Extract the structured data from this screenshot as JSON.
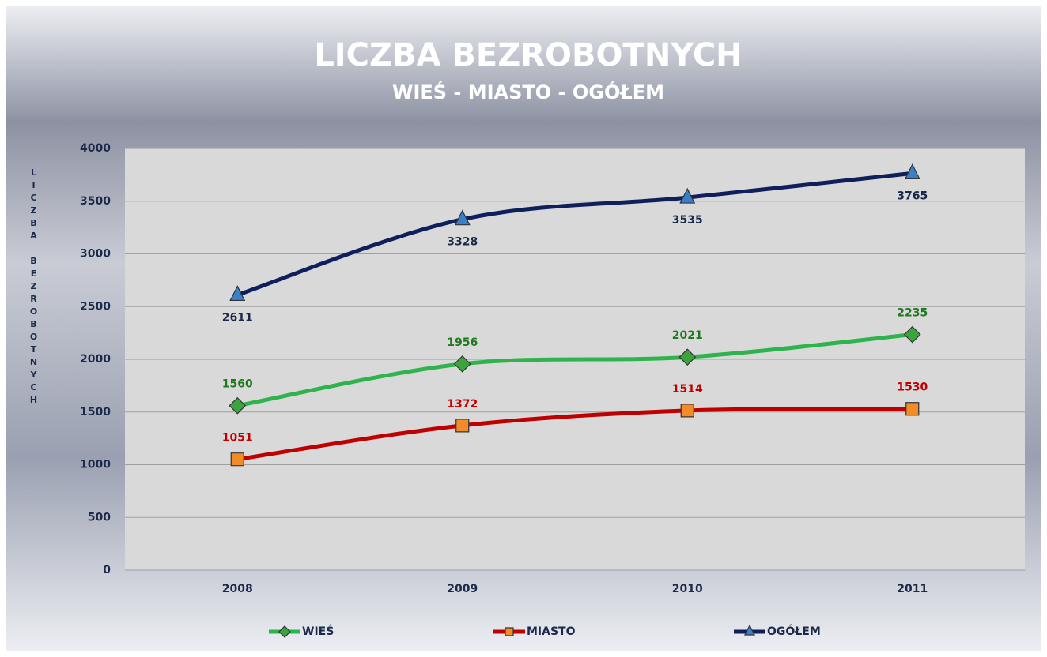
{
  "chart_data": {
    "type": "line",
    "title": "LICZBA BEZROBOTNYCH",
    "subtitle": "WIEŚ - MIASTO - OGÓŁEM",
    "y_label": "LICZBA BEZROBOTNYCH",
    "categories": [
      "2008",
      "2009",
      "2010",
      "2011"
    ],
    "series": [
      {
        "name": "WIEŚ",
        "color": "#2fb34c",
        "marker": "diamond",
        "marker_color": "#3aa53a",
        "label_color": "#1f7a1f",
        "label_position": "above",
        "values": [
          1560,
          1956,
          2021,
          2235
        ]
      },
      {
        "name": "MIASTO",
        "color": "#c00000",
        "marker": "square",
        "marker_color": "#f28c28",
        "label_color": "#c00000",
        "label_position": "above",
        "values": [
          1051,
          1372,
          1514,
          1530
        ]
      },
      {
        "name": "OGÓŁEM",
        "color": "#0f1f5c",
        "marker": "triangle",
        "marker_color": "#3a80c8",
        "label_color": "#1b2a4a",
        "label_position": "below",
        "values": [
          2611,
          3328,
          3535,
          3765
        ]
      }
    ],
    "ylim": [
      0,
      4000
    ],
    "yticks": [
      0,
      500,
      1000,
      1500,
      2000,
      2500,
      3000,
      3500,
      4000
    ],
    "grid": true,
    "smooth": true,
    "legend": "bottom"
  }
}
